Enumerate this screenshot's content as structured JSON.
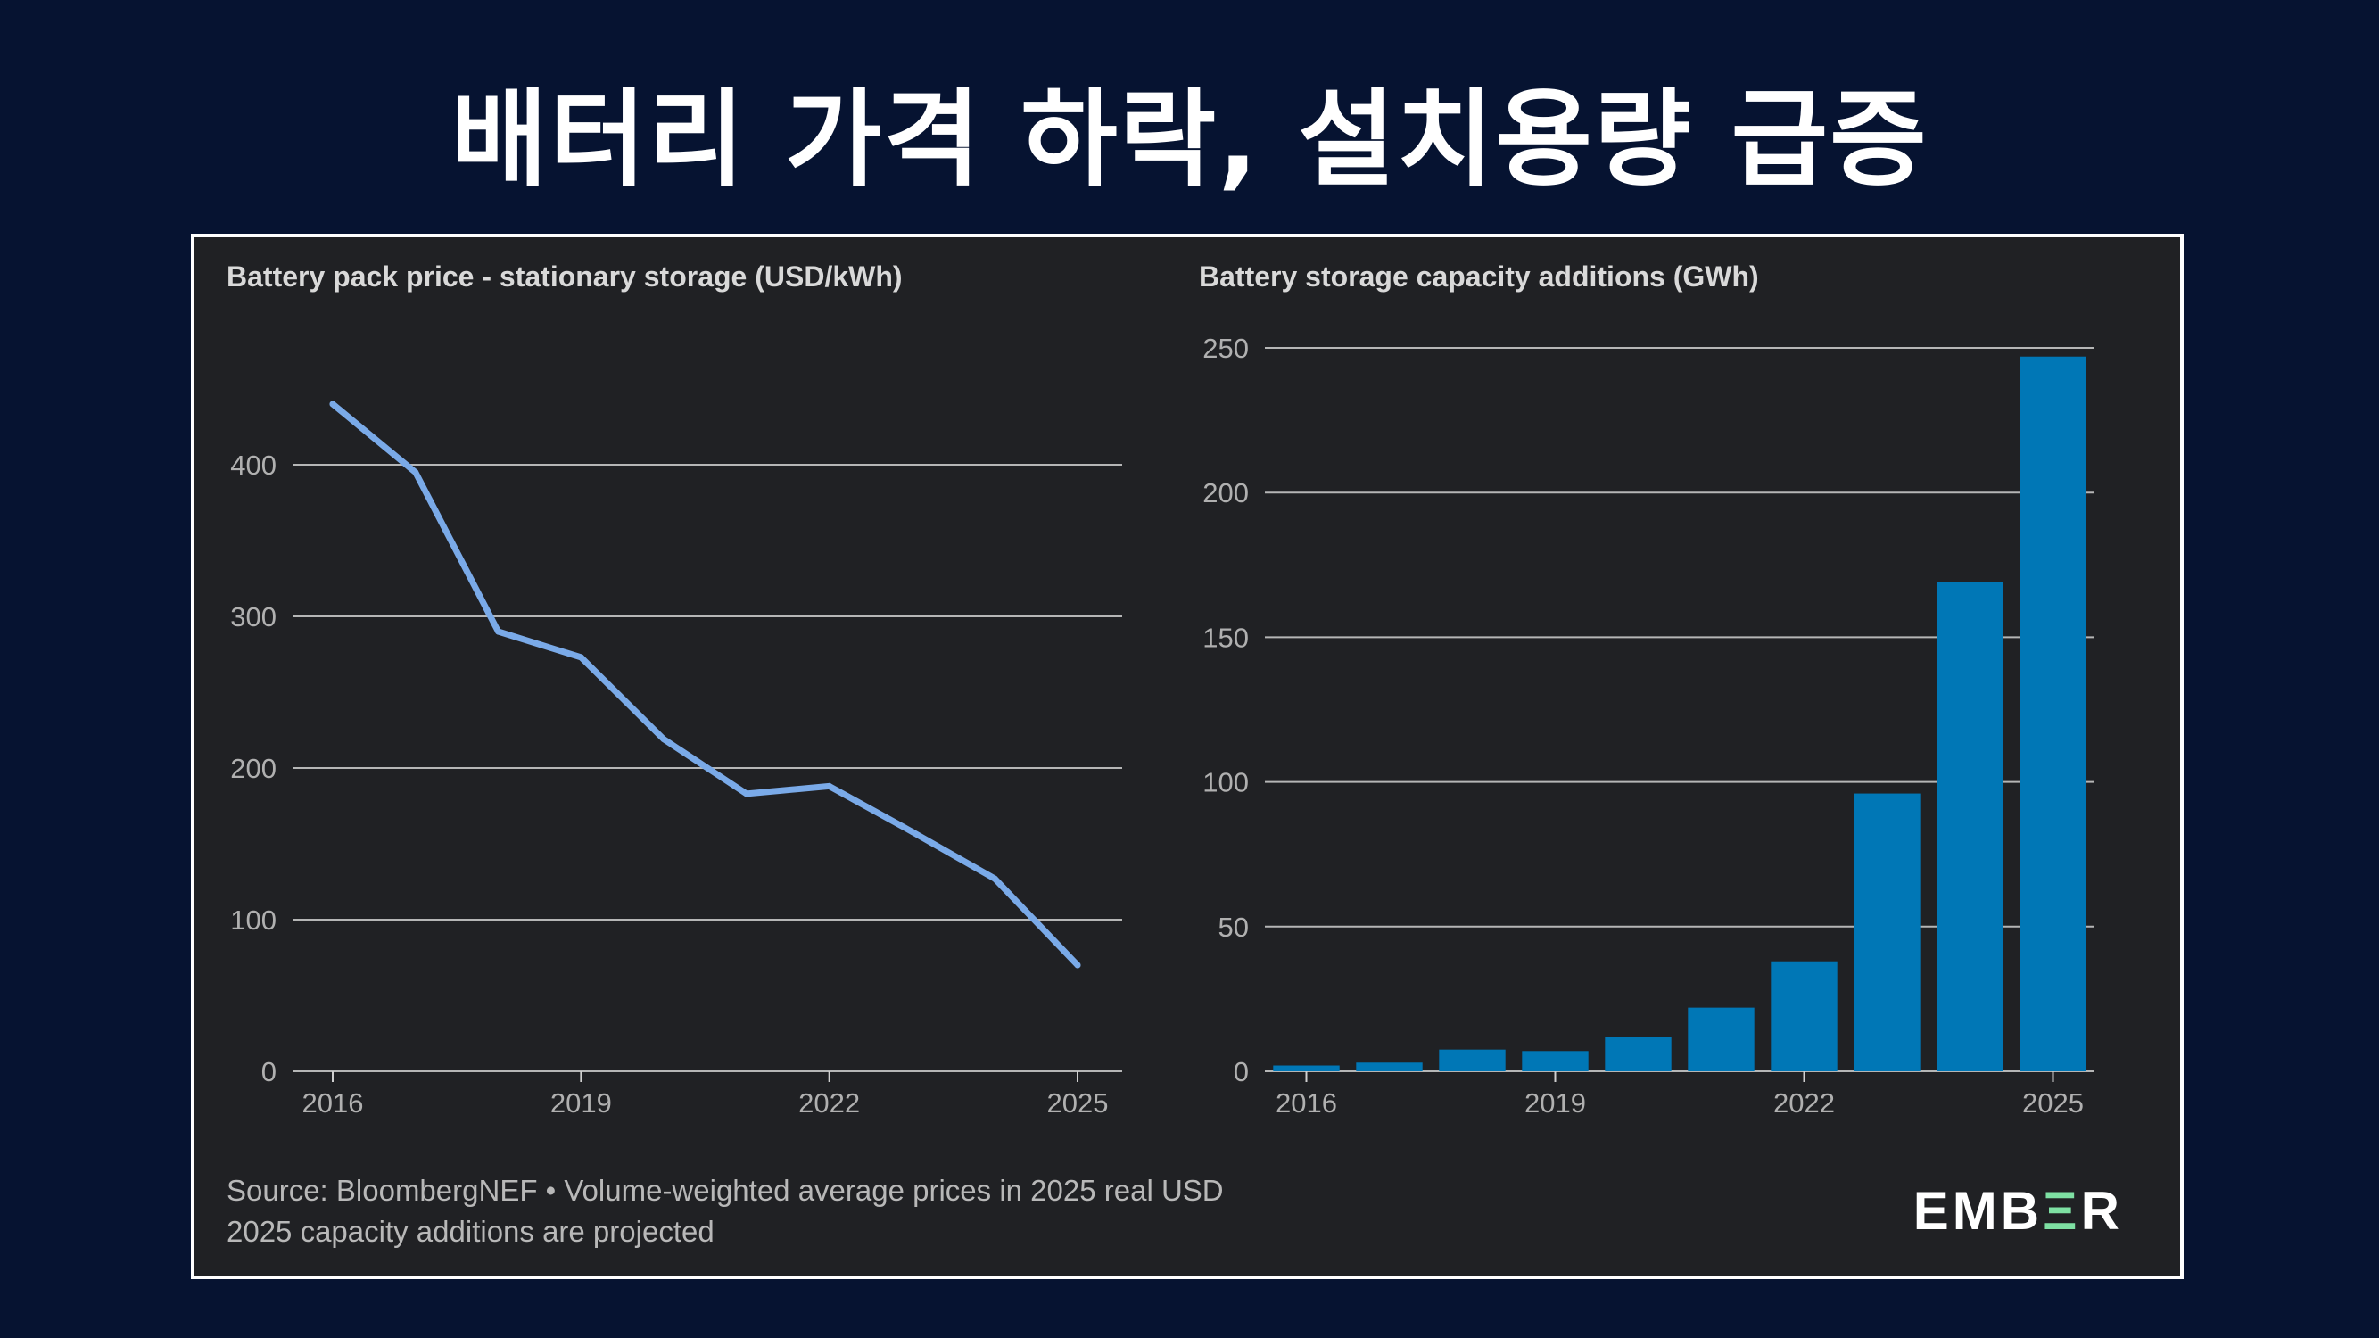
{
  "headline": "배터리 가격 하락, 설치용량 급증",
  "colors": {
    "background": "#061331",
    "panel": "#202124",
    "line": "#7aaae8",
    "bar": "#0077b6",
    "grid": "#d0d0d0"
  },
  "chart_data": [
    {
      "type": "line",
      "title": "Battery pack price - stationary storage (USD/kWh)",
      "x": [
        2016,
        2017,
        2018,
        2019,
        2020,
        2021,
        2022,
        2023,
        2024,
        2025
      ],
      "values": [
        440,
        395,
        290,
        273,
        219,
        183,
        188,
        158,
        127,
        70
      ],
      "xticks": [
        2016,
        2019,
        2022,
        2025
      ],
      "yticks": [
        0,
        100,
        200,
        300,
        400
      ],
      "xlim": [
        2016,
        2025
      ],
      "ylim": [
        0,
        440
      ],
      "grid": true
    },
    {
      "type": "bar",
      "title": "Battery storage capacity additions (GWh)",
      "x": [
        2016,
        2017,
        2018,
        2019,
        2020,
        2021,
        2022,
        2023,
        2024,
        2025
      ],
      "values": [
        2,
        3,
        7.5,
        7,
        12,
        22,
        38,
        96,
        169,
        247
      ],
      "xticks": [
        2016,
        2019,
        2022,
        2025
      ],
      "yticks": [
        0,
        50,
        100,
        150,
        200,
        250
      ],
      "ylim": [
        0,
        250
      ],
      "grid": true
    }
  ],
  "footer": {
    "source_line": "Source: BloombergNEF • Volume-weighted average prices in 2025 real USD",
    "note_line": "2025 capacity additions are projected"
  },
  "logo": {
    "part1": "EMB",
    "accent": "Ξ",
    "part2": "R"
  }
}
